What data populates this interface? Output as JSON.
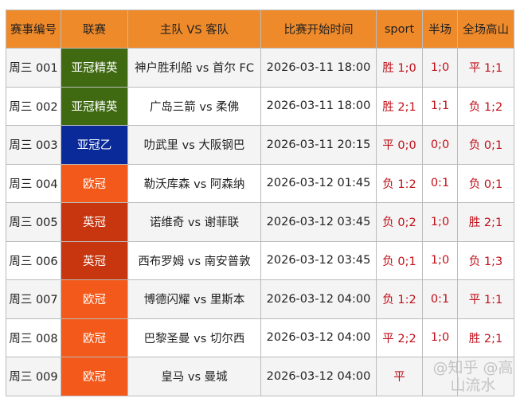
{
  "headers": [
    "赛事编号",
    "联赛",
    "主队 VS 客队",
    "比赛开始时间",
    "sport",
    "半场",
    "全场高山"
  ],
  "colors": {
    "header": "#ef8a2a",
    "result": "#c0101a"
  },
  "rows": [
    {
      "id": "周三 001",
      "league": "亚冠精英",
      "league_color": "#3f6a12",
      "match": "神户胜利船 vs 首尔 FC",
      "time": "2026-03-11 18:00",
      "sport": "胜 1;0",
      "half": "1;0",
      "full": "平 1;1"
    },
    {
      "id": "周三 002",
      "league": "亚冠精英",
      "league_color": "#3f6a12",
      "match": "广岛三箭 vs 柔佛",
      "time": "2026-03-11 18:00",
      "sport": "胜 2;1",
      "half": "1;1",
      "full": "负 1;2"
    },
    {
      "id": "周三 003",
      "league": "亚冠乙",
      "league_color": "#0b2a9a",
      "match": "叻武里 vs 大阪钢巴",
      "time": "2026-03-11 20:15",
      "sport": "平 0;0",
      "half": "0;0",
      "full": "负 0;1"
    },
    {
      "id": "周三 004",
      "league": "欧冠",
      "league_color": "#f2591a",
      "match": "勒沃库森 vs 阿森纳",
      "time": "2026-03-12 01:45",
      "sport": "负 1:2",
      "half": "0:1",
      "full": "负 0;1"
    },
    {
      "id": "周三 005",
      "league": "英冠",
      "league_color": "#c8360f",
      "match": "诺维奇 vs 谢菲联",
      "time": "2026-03-12 03:45",
      "sport": "负 0;2",
      "half": "1;0",
      "full": "胜 2;1"
    },
    {
      "id": "周三 006",
      "league": "英冠",
      "league_color": "#c8360f",
      "match": "西布罗姆 vs 南安普敦",
      "time": "2026-03-12 03:45",
      "sport": "负 0;1",
      "half": "1;0",
      "full": "负 1;3"
    },
    {
      "id": "周三 007",
      "league": "欧冠",
      "league_color": "#f2591a",
      "match": "博德闪耀 vs 里斯本",
      "time": "2026-03-12 04:00",
      "sport": "负 1:2",
      "half": "0:1",
      "full": "平 1:1"
    },
    {
      "id": "周三 008",
      "league": "欧冠",
      "league_color": "#f2591a",
      "match": "巴黎圣曼 vs 切尔西",
      "time": "2026-03-12 04:00",
      "sport": "平 2;2",
      "half": "1;0",
      "full": "胜 2;1"
    },
    {
      "id": "周三 009",
      "league": "欧冠",
      "league_color": "#f2591a",
      "match": "皇马 vs 曼城",
      "time": "2026-03-12 04:00",
      "sport": "平",
      "half": "",
      "full": ""
    }
  ],
  "watermark": "@知乎 @高山流水"
}
